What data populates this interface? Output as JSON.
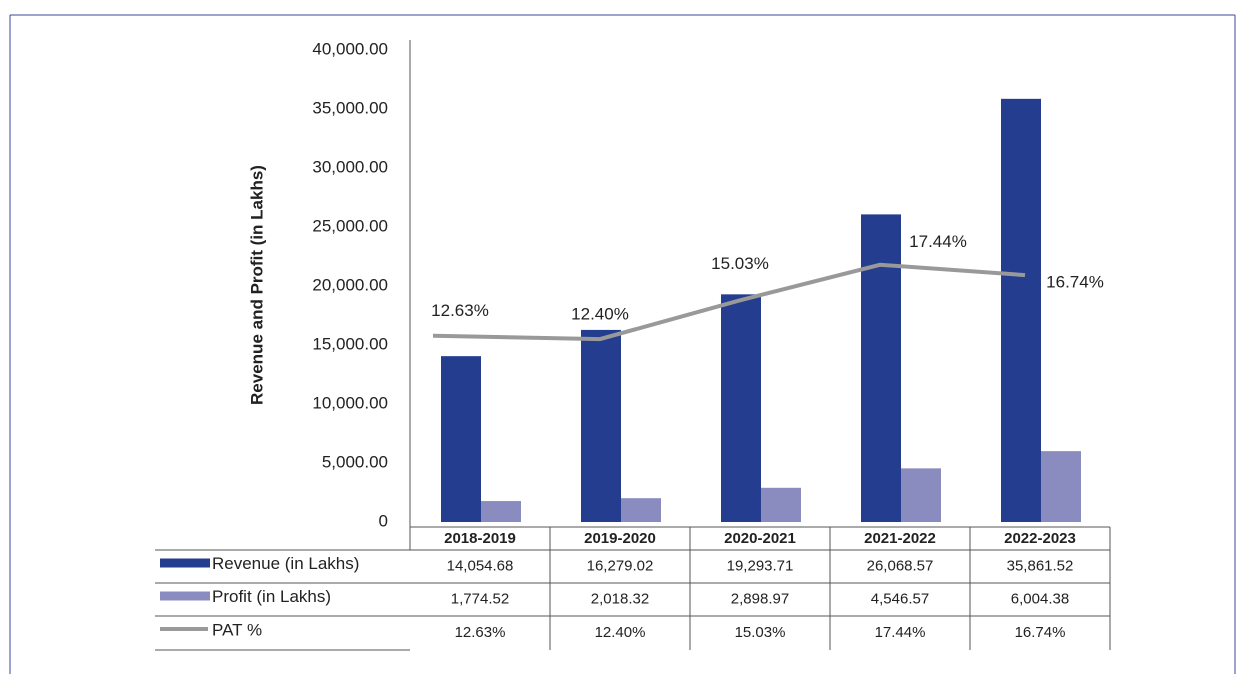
{
  "chart_data": {
    "type": "bar",
    "y_label": "Revenue and Profit (in Lakhs)",
    "categories": [
      "2018-2019",
      "2019-2020",
      "2020-2021",
      "2021-2022",
      "2022-2023"
    ],
    "ylim": [
      0,
      40000
    ],
    "yticks": [
      0,
      {
        "value": 5000,
        "label": "5,000.00"
      },
      {
        "value": 10000,
        "label": "10,000.00"
      },
      {
        "value": 15000,
        "label": "15,000.00"
      },
      {
        "value": 20000,
        "label": "20,000.00"
      },
      {
        "value": 25000,
        "label": "25,000.00"
      },
      {
        "value": 30000,
        "label": "30,000.00"
      },
      {
        "value": 35000,
        "label": "35,000.00"
      },
      {
        "value": 40000,
        "label": "40,000.00"
      }
    ],
    "y2lim": [
      0,
      32
    ],
    "grid": false,
    "series": [
      {
        "name": "Revenue (in Lakhs)",
        "color": "#253d8f",
        "values": [
          14054.68,
          16279.02,
          19293.71,
          26068.57,
          35861.52
        ],
        "value_labels": [
          "14,054.68",
          "16,279.02",
          "19,293.71",
          "26,068.57",
          "35,861.52"
        ]
      },
      {
        "name": "Profit (in Lakhs)",
        "color": "#8a8cc0",
        "values": [
          1774.52,
          2018.32,
          2898.97,
          4546.57,
          6004.38
        ],
        "value_labels": [
          "1,774.52",
          "2,018.32",
          "2,898.97",
          "4,546.57",
          "6,004.38"
        ]
      },
      {
        "name": "PAT %",
        "color": "#999999",
        "type": "line",
        "axis": "y2",
        "values": [
          12.63,
          12.4,
          15.03,
          17.44,
          16.74
        ],
        "value_labels": [
          "12.63%",
          "12.40%",
          "15.03%",
          "17.44%",
          "16.74%"
        ]
      }
    ]
  }
}
